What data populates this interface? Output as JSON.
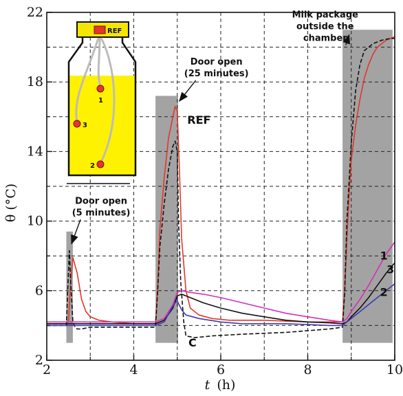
{
  "chart_data": {
    "type": "line",
    "xlabel_italic": "t",
    "xlabel_unit": "(h)",
    "ylabel": "θ (°C)",
    "xlim": [
      2,
      10
    ],
    "ylim": [
      2,
      22
    ],
    "xticks": [
      2,
      4,
      6,
      8,
      10
    ],
    "xtick_labels": [
      "2",
      "4",
      "6",
      "8",
      "10"
    ],
    "yticks": [
      2,
      6,
      10,
      14,
      18,
      22
    ],
    "ytick_labels": [
      "2",
      "6",
      "10",
      "14",
      "18",
      "22"
    ],
    "grid": "dashed",
    "gray_bands": [
      {
        "x0": 2.45,
        "x1": 2.6,
        "y0": 3.0,
        "y1": 9.4
      },
      {
        "x0": 4.5,
        "x1": 5.02,
        "y0": 3.0,
        "y1": 17.2
      },
      {
        "x0": 8.8,
        "x1": 9.95,
        "y0": 3.0,
        "y1": 21.0
      }
    ],
    "annotations": [
      {
        "lines": [
          "Door open",
          "(5 minutes)"
        ],
        "x": 3.25,
        "y": 11.0,
        "arrow_to": [
          2.57,
          8.7
        ]
      },
      {
        "lines": [
          "Door open",
          "(25 minutes)"
        ],
        "x": 5.9,
        "y": 19.0,
        "arrow_to": [
          5.05,
          16.9
        ]
      },
      {
        "lines": [
          "Milk package",
          "outside the",
          "chamber"
        ],
        "x": 8.4,
        "y": 21.7,
        "arrow_to": [
          8.95,
          20.7
        ]
      }
    ],
    "series_labels": [
      {
        "text": "REF",
        "x": 5.5,
        "y": 15.6
      },
      {
        "text": "C",
        "x": 5.35,
        "y": 2.8
      },
      {
        "text": "1",
        "x": 9.75,
        "y": 7.8
      },
      {
        "text": "3",
        "x": 9.9,
        "y": 7.0
      },
      {
        "text": "2",
        "x": 9.75,
        "y": 5.7
      }
    ],
    "series": [
      {
        "key": "REF",
        "color": "#e2372a",
        "dash": false,
        "x": [
          2,
          2.45,
          2.5,
          2.55,
          2.6,
          2.7,
          2.8,
          2.9,
          3.0,
          3.2,
          3.5,
          4.0,
          4.5,
          4.55,
          4.6,
          4.7,
          4.8,
          4.9,
          4.95,
          5.0,
          5.05,
          5.1,
          5.2,
          5.3,
          5.5,
          5.8,
          6.2,
          7.0,
          8.0,
          8.8,
          8.85,
          8.9,
          8.95,
          9.0,
          9.1,
          9.2,
          9.3,
          9.4,
          9.5,
          9.6,
          9.7,
          9.8,
          9.9,
          10.0
        ],
        "y": [
          4.1,
          4.1,
          4.3,
          6.5,
          7.9,
          7.0,
          5.5,
          4.8,
          4.5,
          4.3,
          4.2,
          4.1,
          4.1,
          6.2,
          9.5,
          12.5,
          14.8,
          16.0,
          16.6,
          16.3,
          13.0,
          9.0,
          6.0,
          5.0,
          4.6,
          4.4,
          4.3,
          4.3,
          4.2,
          4.2,
          6.0,
          9.0,
          11.5,
          13.5,
          15.5,
          17.0,
          18.2,
          19.0,
          19.6,
          20.0,
          20.2,
          20.4,
          20.5,
          20.6
        ]
      },
      {
        "key": "C",
        "color": "#111111",
        "dash": true,
        "x": [
          2,
          2.45,
          2.48,
          2.52,
          2.55,
          2.6,
          2.65,
          2.7,
          2.8,
          3.0,
          3.5,
          4.0,
          4.5,
          4.55,
          4.6,
          4.7,
          4.8,
          4.9,
          4.95,
          5.0,
          5.03,
          5.08,
          5.15,
          5.2,
          5.4,
          5.8,
          6.5,
          7.5,
          8.5,
          8.8,
          8.85,
          8.9,
          9.0,
          9.1,
          9.2,
          9.3,
          9.5,
          9.7,
          9.9,
          10.0
        ],
        "y": [
          4.0,
          4.0,
          6.0,
          8.3,
          6.5,
          4.2,
          3.9,
          3.8,
          3.8,
          3.9,
          3.9,
          3.9,
          3.9,
          6.0,
          8.5,
          11.0,
          13.0,
          14.3,
          14.6,
          14.0,
          10.0,
          6.5,
          4.2,
          3.4,
          3.3,
          3.4,
          3.5,
          3.6,
          3.8,
          3.9,
          6.0,
          10.0,
          14.5,
          17.5,
          19.0,
          19.8,
          20.2,
          20.4,
          20.5,
          20.5
        ]
      },
      {
        "key": "1",
        "color": "#d62fb4",
        "dash": false,
        "x": [
          2,
          2.5,
          3.0,
          4.0,
          4.5,
          4.7,
          4.9,
          5.0,
          5.1,
          5.3,
          5.6,
          6.0,
          6.5,
          7.0,
          7.5,
          8.0,
          8.5,
          8.8,
          8.9,
          9.0,
          9.2,
          9.4,
          9.6,
          9.8,
          10.0
        ],
        "y": [
          4.2,
          4.2,
          4.2,
          4.2,
          4.2,
          4.4,
          5.2,
          5.9,
          6.0,
          5.9,
          5.8,
          5.6,
          5.3,
          5.0,
          4.7,
          4.5,
          4.3,
          4.2,
          4.4,
          4.8,
          5.5,
          6.3,
          7.2,
          8.1,
          8.8
        ]
      },
      {
        "key": "3",
        "color": "#111111",
        "dash": false,
        "x": [
          2,
          2.5,
          3.0,
          4.0,
          4.5,
          4.7,
          4.9,
          5.0,
          5.1,
          5.3,
          5.6,
          6.0,
          6.5,
          7.0,
          7.5,
          8.0,
          8.5,
          8.8,
          8.9,
          9.0,
          9.2,
          9.4,
          9.6,
          9.8,
          10.0
        ],
        "y": [
          4.1,
          4.1,
          4.1,
          4.1,
          4.1,
          4.3,
          5.0,
          5.7,
          5.8,
          5.6,
          5.3,
          5.0,
          4.7,
          4.5,
          4.3,
          4.2,
          4.15,
          4.1,
          4.2,
          4.5,
          5.0,
          5.6,
          6.3,
          7.0,
          7.6
        ]
      },
      {
        "key": "2",
        "color": "#3a3ab0",
        "dash": false,
        "x": [
          2,
          2.5,
          3.0,
          4.0,
          4.5,
          4.7,
          4.85,
          4.95,
          5.0,
          5.1,
          5.2,
          5.5,
          6.0,
          6.5,
          7.0,
          7.5,
          8.0,
          8.5,
          8.8,
          8.9,
          9.0,
          9.2,
          9.4,
          9.6,
          9.8,
          10.0
        ],
        "y": [
          4.0,
          4.0,
          4.0,
          4.0,
          4.0,
          4.2,
          4.9,
          5.3,
          5.4,
          4.9,
          4.6,
          4.4,
          4.2,
          4.1,
          4.1,
          4.1,
          4.05,
          4.0,
          4.0,
          4.2,
          4.4,
          4.8,
          5.2,
          5.6,
          6.0,
          6.4
        ]
      }
    ],
    "inset": {
      "cap_label": "REF",
      "sensors": [
        "1",
        "2",
        "3"
      ]
    }
  }
}
